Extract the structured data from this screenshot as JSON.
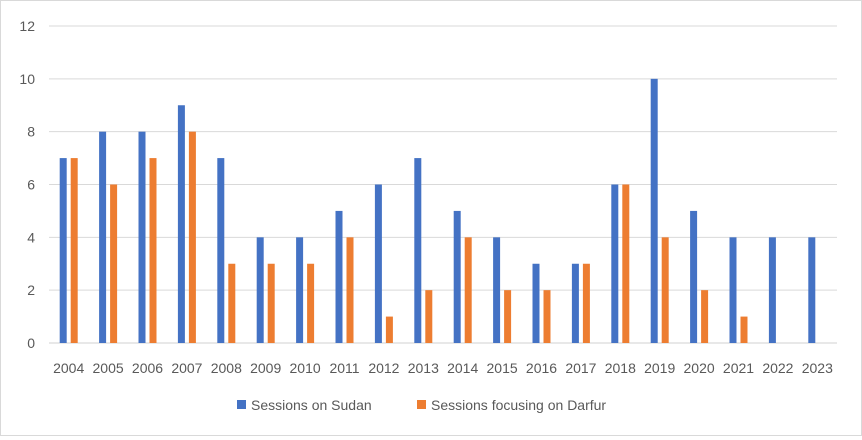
{
  "chart_data": {
    "type": "bar",
    "title": "",
    "xlabel": "",
    "ylabel": "",
    "ylim": [
      0,
      12
    ],
    "yticks": [
      0,
      2,
      4,
      6,
      8,
      10,
      12
    ],
    "grid": true,
    "legend_position": "bottom",
    "categories": [
      "2004",
      "2005",
      "2006",
      "2007",
      "2008",
      "2009",
      "2010",
      "2011",
      "2012",
      "2013",
      "2014",
      "2015",
      "2016",
      "2017",
      "2018",
      "2019",
      "2020",
      "2021",
      "2022",
      "2023"
    ],
    "series": [
      {
        "name": "Sessions on Sudan",
        "color": "#4472C4",
        "values": [
          7,
          8,
          8,
          9,
          7,
          4,
          4,
          5,
          6,
          7,
          5,
          4,
          3,
          3,
          6,
          10,
          5,
          4,
          4,
          4
        ]
      },
      {
        "name": "Sessions focusing on Darfur",
        "color": "#ED7D31",
        "values": [
          7,
          6,
          7,
          8,
          3,
          3,
          3,
          4,
          1,
          2,
          4,
          2,
          2,
          3,
          6,
          4,
          2,
          1,
          0,
          0
        ]
      }
    ]
  }
}
